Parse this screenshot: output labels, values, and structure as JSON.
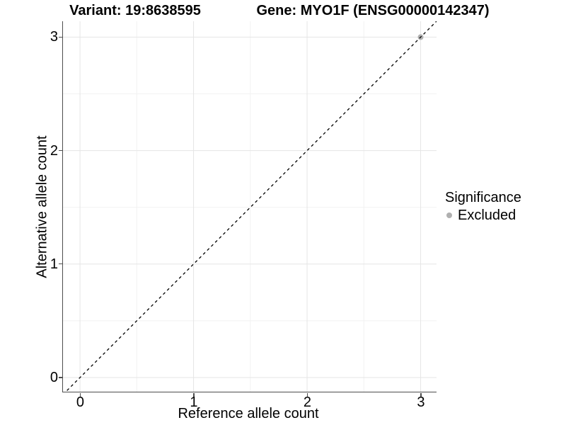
{
  "titles": {
    "variant": "Variant: 19:8638595",
    "gene": "Gene: MYO1F (ENSG00000142347)"
  },
  "axes": {
    "x_label": "Reference allele count",
    "y_label": "Alternative allele count"
  },
  "legend": {
    "title": "Significance",
    "items": [
      {
        "label": "Excluded",
        "color": "#b0b0b0"
      }
    ]
  },
  "colors": {
    "background": "#ffffff",
    "text": "#000000",
    "axis_line": "#4d4d4d",
    "major_grid": "#e5e5e5",
    "minor_grid": "#f2f2f2",
    "reference_line": "#000000",
    "excluded_point": "#b0b0b0"
  },
  "chart_data": {
    "type": "scatter",
    "title_left": "Variant: 19:8638595",
    "title_right": "Gene: MYO1F (ENSG00000142347)",
    "xlabel": "Reference allele count",
    "ylabel": "Alternative allele count",
    "xlim": [
      -0.15,
      3.14
    ],
    "ylim": [
      -0.125,
      3.14
    ],
    "x_ticks": [
      0,
      1,
      2,
      3
    ],
    "y_ticks": [
      0,
      1,
      2,
      3
    ],
    "x_minor_gridlines": [
      0.5,
      1.5,
      2.5
    ],
    "y_minor_gridlines": [
      0.5,
      1.5,
      2.5
    ],
    "grid": "major+minor",
    "legend_position": "right",
    "legend_title": "Significance",
    "series": [
      {
        "name": "Excluded",
        "color": "#b0b0b0",
        "marker": "circle",
        "marker_radius": 4,
        "points": [
          {
            "x": 3,
            "y": 3
          }
        ]
      }
    ],
    "reference_line": {
      "equation": "y = x",
      "slope": 1,
      "intercept": 0,
      "style": "dashed",
      "color": "#000000"
    }
  }
}
